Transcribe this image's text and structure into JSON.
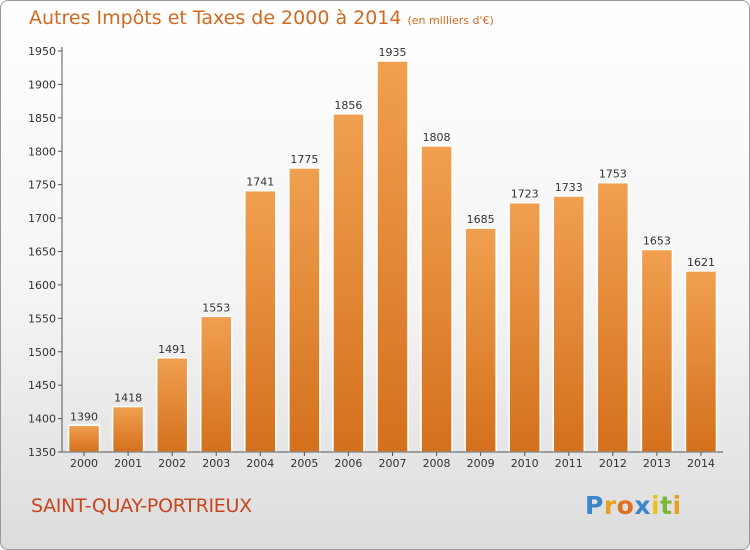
{
  "chart_data": {
    "type": "bar",
    "title": "Autres Impôts et Taxes de 2000 à 2014",
    "unit_note": "(en milliers d'€)",
    "categories": [
      "2000",
      "2001",
      "2002",
      "2003",
      "2004",
      "2005",
      "2006",
      "2007",
      "2008",
      "2009",
      "2010",
      "2011",
      "2012",
      "2013",
      "2014"
    ],
    "values": [
      1390,
      1418,
      1491,
      1553,
      1741,
      1775,
      1856,
      1935,
      1808,
      1685,
      1723,
      1733,
      1753,
      1653,
      1621
    ],
    "ylim": [
      1350,
      1950
    ],
    "yticks": [
      1350,
      1400,
      1450,
      1500,
      1550,
      1600,
      1650,
      1700,
      1750,
      1800,
      1850,
      1900,
      1950
    ],
    "xlabel": "",
    "ylabel": "",
    "grid": false,
    "legend": "none",
    "bar_color": "#f0a050",
    "bar_color_dark": "#d4701c"
  },
  "footer": {
    "commune": "SAINT-QUAY-PORTRIEUX",
    "logo": [
      {
        "ch": "P",
        "color": "#3a86c8"
      },
      {
        "ch": "r",
        "color": "#e8a020"
      },
      {
        "ch": "o",
        "color": "#e07020"
      },
      {
        "ch": "x",
        "color": "#3a86c8"
      },
      {
        "ch": "i",
        "color": "#e8c020"
      },
      {
        "ch": "t",
        "color": "#7ab83a"
      },
      {
        "ch": "i",
        "color": "#e8a020"
      }
    ]
  }
}
